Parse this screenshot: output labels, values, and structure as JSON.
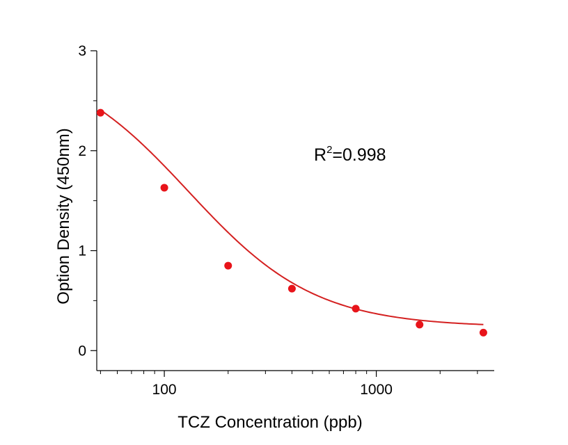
{
  "chart_data": {
    "type": "scatter",
    "title": "",
    "xlabel": "TCZ Concentration (ppb)",
    "ylabel": "Option Density (450nm)",
    "xscale": "log",
    "xlim": [
      48,
      3600
    ],
    "ylim": [
      -0.2,
      3
    ],
    "xticks": [
      100,
      1000
    ],
    "xtick_labels": [
      "100",
      "1000"
    ],
    "yticks": [
      0,
      1,
      2,
      3
    ],
    "ytick_labels": [
      "0",
      "1",
      "2",
      "3"
    ],
    "grid": false,
    "legend": "none",
    "series": [
      {
        "points": [
          {
            "x": 50,
            "y": 2.38
          },
          {
            "x": 100,
            "y": 1.63
          },
          {
            "x": 200,
            "y": 0.85
          },
          {
            "x": 400,
            "y": 0.62
          },
          {
            "x": 800,
            "y": 0.42
          },
          {
            "x": 1600,
            "y": 0.26
          },
          {
            "x": 3200,
            "y": 0.18
          }
        ],
        "color": "#e8141a"
      }
    ],
    "fit": {
      "type": "4PL",
      "top": 2.95,
      "bottom": 0.235,
      "ec50": 130,
      "hill": 1.45,
      "color": "#d42020"
    },
    "annotation": {
      "R": "R",
      "sup": "2",
      "rest": "=0.998"
    }
  }
}
